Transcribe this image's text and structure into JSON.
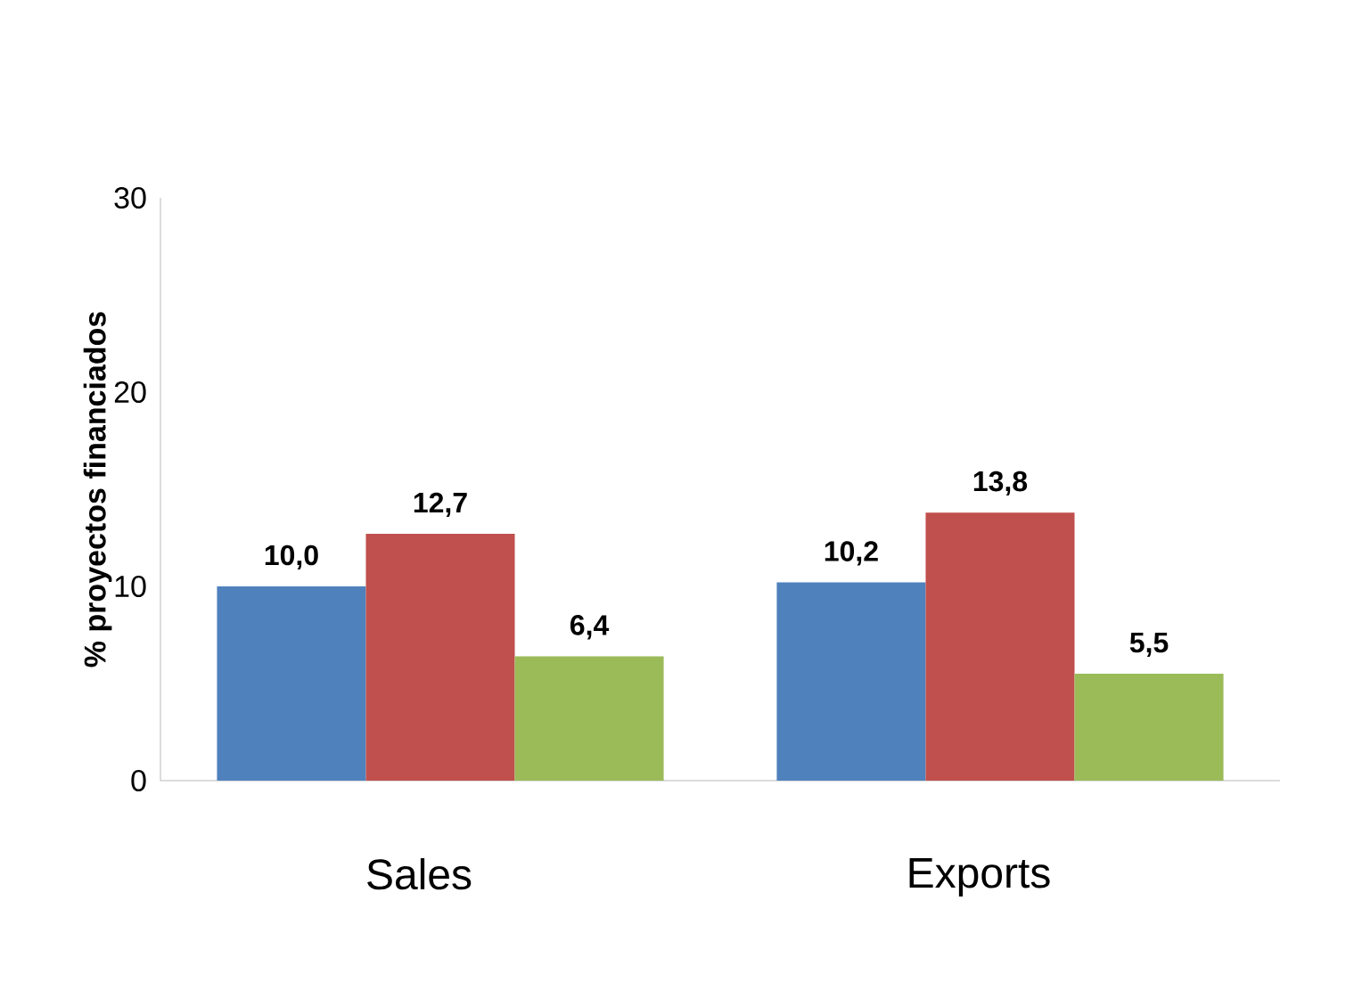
{
  "chart_data": {
    "type": "bar",
    "ylabel": "% proyectos financiados",
    "categories": [
      "Sales",
      "Exports"
    ],
    "series": [
      {
        "color": "#4f81bd",
        "values": [
          10.0,
          10.2
        ],
        "value_labels": [
          "10,0",
          "10,2"
        ]
      },
      {
        "color": "#c0504d",
        "values": [
          12.7,
          13.8
        ],
        "value_labels": [
          "12,7",
          "13,8"
        ]
      },
      {
        "color": "#9bbb59",
        "values": [
          6.4,
          5.5
        ],
        "value_labels": [
          "6,4",
          "5,5"
        ]
      }
    ],
    "ylim": [
      0,
      30
    ],
    "yticks": [
      0,
      10,
      20,
      30
    ]
  }
}
